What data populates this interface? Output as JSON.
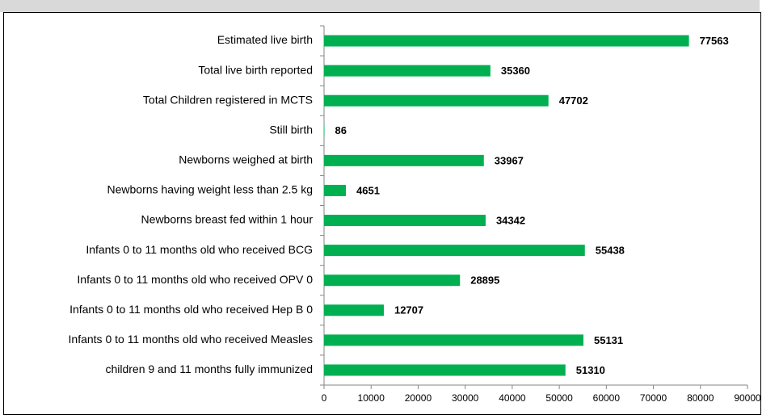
{
  "chart_data": {
    "type": "bar",
    "orientation": "horizontal",
    "categories": [
      "Estimated live birth",
      "Total live birth reported",
      "Total Children registered in MCTS",
      "Still birth",
      "Newborns weighed at birth",
      "Newborns having weight less than 2.5 kg",
      "Newborns breast fed within 1 hour",
      "Infants 0 to 11 months old who received BCG",
      "Infants 0 to 11 months old who received OPV 0",
      "Infants 0 to 11 months old who received Hep B 0",
      "Infants 0 to 11 months old who received Measles",
      "children 9 and 11 months fully immunized"
    ],
    "values": [
      77563,
      35360,
      47702,
      86,
      33967,
      4651,
      34342,
      55438,
      28895,
      12707,
      55131,
      51310
    ],
    "color": "#00b050",
    "xlim": [
      0,
      90000
    ],
    "xticks": [
      0,
      10000,
      20000,
      30000,
      40000,
      50000,
      60000,
      70000,
      80000,
      90000
    ]
  }
}
